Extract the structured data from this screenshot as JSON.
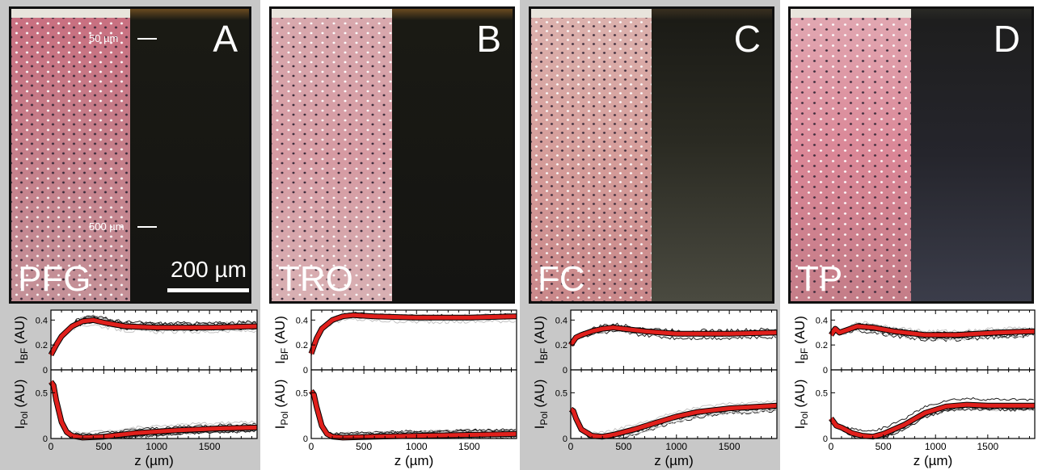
{
  "panels": [
    {
      "letter": "A",
      "tissue": "PFG",
      "bf_color": "#c9828b",
      "pol_style": "dark",
      "bg": true
    },
    {
      "letter": "B",
      "tissue": "TRO",
      "bf_color": "#d6a2a8",
      "pol_style": "dark",
      "bg": false
    },
    {
      "letter": "C",
      "tissue": "FC",
      "bf_color": "#d7a4a0",
      "pol_style": "light",
      "bg": true
    },
    {
      "letter": "D",
      "tissue": "TP",
      "bf_color": "#dc939f",
      "pol_style": "blue",
      "bg": false
    }
  ],
  "annotations": {
    "depth_top": "50 µm",
    "depth_bottom": "500 µm",
    "scale_bar": "200 µm"
  },
  "colors": {
    "panel_bg": "#c8c8c8",
    "mean_curve": "#e0201c",
    "sample_dark": "#222222",
    "sample_light": "#bbbbbb"
  },
  "chart_data": [
    {
      "panel": "A",
      "type": "line",
      "xlabel": "z (µm)",
      "x_ticks": [
        "0",
        "500",
        "1000",
        "1500"
      ],
      "xlim": [
        0,
        1950
      ],
      "top": {
        "ylabel": "I_BF (AU)",
        "yticks": [
          "0",
          "0.2",
          "0.4"
        ],
        "ylim": [
          0,
          0.48
        ],
        "mean": {
          "x": [
            0,
            50,
            100,
            200,
            300,
            400,
            500,
            700,
            1000,
            1500,
            1950
          ],
          "y": [
            0.12,
            0.2,
            0.27,
            0.35,
            0.39,
            0.4,
            0.38,
            0.35,
            0.34,
            0.34,
            0.35
          ]
        }
      },
      "bottom": {
        "ylabel": "I_Pol (AU)",
        "yticks": [
          "0",
          "0.5"
        ],
        "ylim": [
          0,
          0.75
        ],
        "mean": {
          "x": [
            0,
            25,
            50,
            100,
            150,
            200,
            300,
            500,
            800,
            1200,
            1600,
            1950
          ],
          "y": [
            0.62,
            0.58,
            0.42,
            0.18,
            0.07,
            0.03,
            0.01,
            0.02,
            0.06,
            0.09,
            0.11,
            0.12
          ]
        }
      }
    },
    {
      "panel": "B",
      "type": "line",
      "xlabel": "z (µm)",
      "x_ticks": [
        "0",
        "500",
        "1000",
        "1500"
      ],
      "xlim": [
        0,
        1950
      ],
      "top": {
        "ylabel": "I_BF (AU)",
        "yticks": [
          "0",
          "0.2",
          "0.4"
        ],
        "ylim": [
          0,
          0.48
        ],
        "mean": {
          "x": [
            0,
            50,
            100,
            200,
            300,
            400,
            600,
            1000,
            1500,
            1950
          ],
          "y": [
            0.13,
            0.25,
            0.33,
            0.4,
            0.43,
            0.44,
            0.43,
            0.42,
            0.42,
            0.43
          ]
        }
      },
      "bottom": {
        "ylabel": "I_Pol (AU)",
        "yticks": [
          "0",
          "0.5"
        ],
        "ylim": [
          0,
          0.75
        ],
        "mean": {
          "x": [
            0,
            25,
            50,
            100,
            150,
            200,
            300,
            600,
            1000,
            1500,
            1950
          ],
          "y": [
            0.52,
            0.48,
            0.35,
            0.14,
            0.05,
            0.02,
            0.01,
            0.02,
            0.03,
            0.04,
            0.05
          ]
        }
      }
    },
    {
      "panel": "C",
      "type": "line",
      "xlabel": "z (µm)",
      "x_ticks": [
        "0",
        "500",
        "1000",
        "1500"
      ],
      "xlim": [
        0,
        1950
      ],
      "top": {
        "ylabel": "I_BF (AU)",
        "yticks": [
          "0",
          "0.2",
          "0.4"
        ],
        "ylim": [
          0,
          0.48
        ],
        "mean": {
          "x": [
            0,
            50,
            100,
            200,
            300,
            400,
            500,
            700,
            1000,
            1500,
            1950
          ],
          "y": [
            0.2,
            0.26,
            0.28,
            0.31,
            0.33,
            0.34,
            0.33,
            0.31,
            0.29,
            0.29,
            0.3
          ]
        }
      },
      "bottom": {
        "ylabel": "I_Pol (AU)",
        "yticks": [
          "0",
          "0.5"
        ],
        "ylim": [
          0,
          0.75
        ],
        "mean": {
          "x": [
            0,
            25,
            50,
            100,
            200,
            300,
            400,
            600,
            800,
            1000,
            1200,
            1500,
            1950
          ],
          "y": [
            0.32,
            0.3,
            0.22,
            0.1,
            0.03,
            0.02,
            0.04,
            0.1,
            0.17,
            0.24,
            0.29,
            0.33,
            0.36
          ]
        }
      }
    },
    {
      "panel": "D",
      "type": "line",
      "xlabel": "z (µm)",
      "x_ticks": [
        "0",
        "500",
        "1000",
        "1500"
      ],
      "xlim": [
        0,
        1950
      ],
      "top": {
        "ylabel": "I_BF (AU)",
        "yticks": [
          "0",
          "0.2",
          "0.4"
        ],
        "ylim": [
          0,
          0.48
        ],
        "mean": {
          "x": [
            0,
            40,
            80,
            150,
            250,
            400,
            600,
            900,
            1200,
            1600,
            1950
          ],
          "y": [
            0.28,
            0.33,
            0.3,
            0.32,
            0.35,
            0.34,
            0.31,
            0.28,
            0.28,
            0.3,
            0.31
          ]
        }
      },
      "bottom": {
        "ylabel": "I_Pol (AU)",
        "yticks": [
          "0",
          "0.5"
        ],
        "ylim": [
          0,
          0.75
        ],
        "mean": {
          "x": [
            0,
            50,
            100,
            200,
            300,
            400,
            500,
            700,
            900,
            1100,
            1300,
            1500,
            1950
          ],
          "y": [
            0.22,
            0.14,
            0.12,
            0.06,
            0.03,
            0.02,
            0.05,
            0.15,
            0.28,
            0.35,
            0.37,
            0.36,
            0.36
          ]
        }
      }
    }
  ]
}
